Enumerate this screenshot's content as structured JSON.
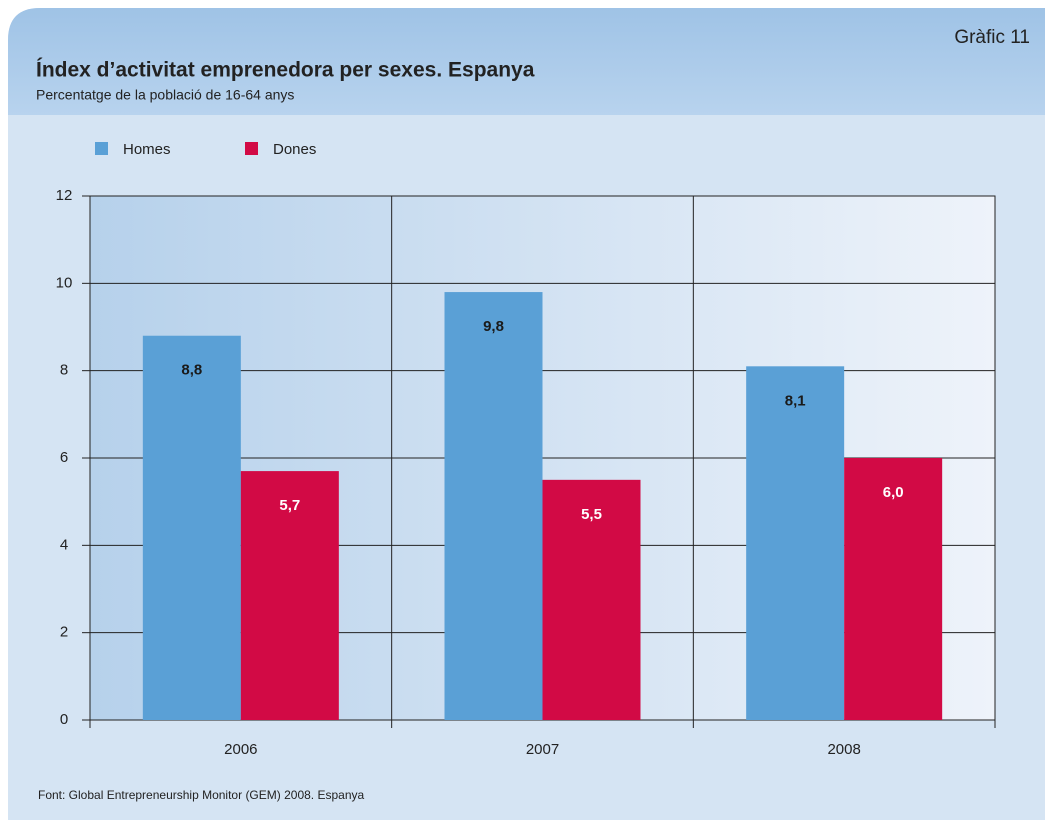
{
  "chart_data": {
    "type": "bar",
    "label": "Gràfic 11",
    "title": "Índex d’activitat emprenedora per sexes. Espanya",
    "subtitle": "Percentatge de la població de 16-64 anys",
    "categories": [
      "2006",
      "2007",
      "2008"
    ],
    "series": [
      {
        "name": "Homes",
        "color": "#5aa0d6",
        "values": [
          8.8,
          9.8,
          8.1
        ],
        "value_labels": [
          "8,8",
          "9,8",
          "8,1"
        ]
      },
      {
        "name": "Dones",
        "color": "#d20a45",
        "values": [
          5.7,
          5.5,
          6.0
        ],
        "value_labels": [
          "5,7",
          "5,5",
          "6,0"
        ]
      }
    ],
    "ylim": [
      0,
      12
    ],
    "yticks": [
      0,
      2,
      4,
      6,
      8,
      10,
      12
    ],
    "grid": true,
    "legend": "top-left",
    "source": "Font: Global Entrepreneurship Monitor (GEM) 2008. Espanya"
  }
}
